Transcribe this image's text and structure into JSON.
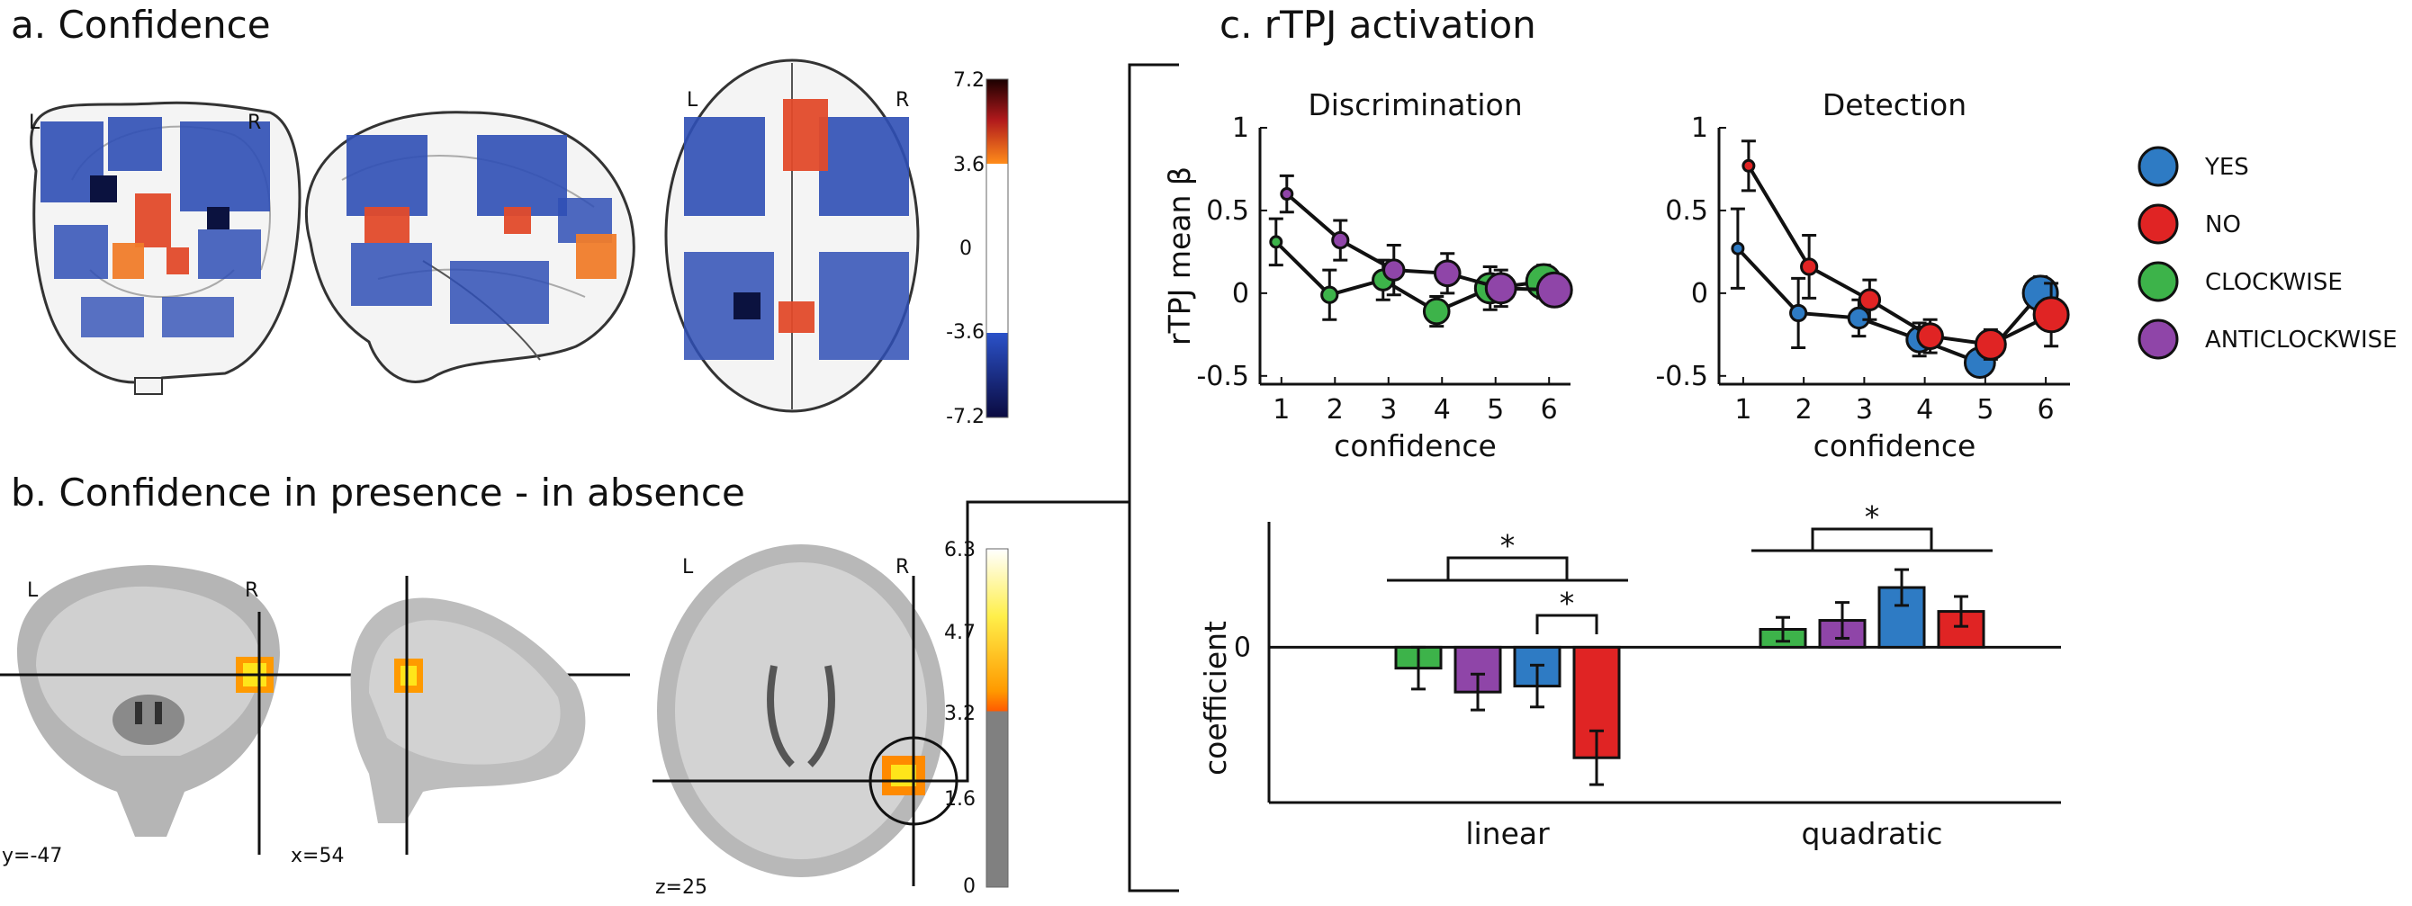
{
  "panels": {
    "a": {
      "title": "a. Confidence"
    },
    "b": {
      "title": "b. Confidence in presence - in absence"
    },
    "c": {
      "title": "c. rTPJ activation"
    }
  },
  "brain_labels": {
    "a_left": "L",
    "a_right": "R",
    "a_axial_left": "L",
    "a_axial_right": "R",
    "b_left": "L",
    "b_right": "R",
    "b_axial_left": "L",
    "b_axial_right": "R",
    "b_coord_y": "y=-47",
    "b_coord_x": "x=54",
    "b_coord_z": "z=25"
  },
  "colorbars": {
    "a": {
      "ticks": [
        "7.2",
        "3.6",
        "0",
        "-3.6",
        "-7.2"
      ],
      "colors": [
        "#1a0000",
        "#d62a1e",
        "#ff8c1a",
        "#ffffff",
        "#2b52c9",
        "#0a0a40"
      ]
    },
    "b": {
      "ticks": [
        "6.3",
        "4.7",
        "3.2",
        "1.6",
        "0"
      ],
      "colors": [
        "#ffffff",
        "#ffe51a",
        "#ff9a00",
        "#ff5a00",
        "#808080"
      ]
    }
  },
  "legend": [
    {
      "label": "YES",
      "color": "#2e7bc4"
    },
    {
      "label": "NO",
      "color": "#e02424"
    },
    {
      "label": "CLOCKWISE",
      "color": "#3db34a"
    },
    {
      "label": "ANTICLOCKWISE",
      "color": "#8f45a8"
    }
  ],
  "chart_data": [
    {
      "type": "line",
      "title": "Discrimination",
      "xlabel": "confidence",
      "ylabel": "rTPJ mean β",
      "x": [
        1,
        2,
        3,
        4,
        5,
        6
      ],
      "xlim": [
        0.6,
        6.4
      ],
      "ylim": [
        -0.55,
        1.0
      ],
      "yticks": [
        "1",
        "0.5",
        "0",
        "-0.5"
      ],
      "xticks": [
        "1",
        "2",
        "3",
        "4",
        "5",
        "6"
      ],
      "series": [
        {
          "name": "CLOCKWISE",
          "color": "#3db34a",
          "values": [
            0.31,
            -0.01,
            0.08,
            -0.11,
            0.03,
            0.07
          ],
          "err": [
            0.14,
            0.15,
            0.12,
            0.09,
            0.13,
            0.1
          ]
        },
        {
          "name": "ANTICLOCKWISE",
          "color": "#8f45a8",
          "values": [
            0.6,
            0.32,
            0.14,
            0.12,
            0.03,
            0.02
          ],
          "err": [
            0.11,
            0.12,
            0.15,
            0.12,
            0.11,
            0.09
          ]
        }
      ]
    },
    {
      "type": "line",
      "title": "Detection",
      "xlabel": "confidence",
      "x": [
        1,
        2,
        3,
        4,
        5,
        6
      ],
      "xlim": [
        0.6,
        6.4
      ],
      "ylim": [
        -0.55,
        1.0
      ],
      "yticks": [
        "1",
        "0.5",
        "0",
        "-0.5"
      ],
      "xticks": [
        "1",
        "2",
        "3",
        "4",
        "5",
        "6"
      ],
      "series": [
        {
          "name": "YES",
          "color": "#2e7bc4",
          "values": [
            0.27,
            -0.12,
            -0.15,
            -0.28,
            -0.42,
            0.0
          ],
          "err": [
            0.24,
            0.21,
            0.11,
            0.1,
            0.07,
            0.1
          ]
        },
        {
          "name": "NO",
          "color": "#e02424",
          "values": [
            0.77,
            0.16,
            -0.04,
            -0.26,
            -0.31,
            -0.13
          ],
          "err": [
            0.15,
            0.19,
            0.12,
            0.1,
            0.09,
            0.19
          ]
        }
      ]
    },
    {
      "type": "bar",
      "ylabel": "coefficient",
      "categories": [
        "linear",
        "quadratic"
      ],
      "yticks": [
        "0"
      ],
      "ylim": [
        -0.52,
        0.42
      ],
      "series": [
        {
          "name": "CLOCKWISE",
          "color": "#3db34a",
          "values": [
            -0.07,
            0.06
          ],
          "err": [
            0.07,
            0.04
          ]
        },
        {
          "name": "ANTICLOCKWISE",
          "color": "#8f45a8",
          "values": [
            -0.15,
            0.09
          ],
          "err": [
            0.06,
            0.06
          ]
        },
        {
          "name": "YES",
          "color": "#2e7bc4",
          "values": [
            -0.13,
            0.2
          ],
          "err": [
            0.07,
            0.06
          ]
        },
        {
          "name": "NO",
          "color": "#e02424",
          "values": [
            -0.37,
            0.12
          ],
          "err": [
            0.09,
            0.05
          ]
        }
      ],
      "annotations": [
        "*",
        "*",
        "*"
      ]
    }
  ]
}
